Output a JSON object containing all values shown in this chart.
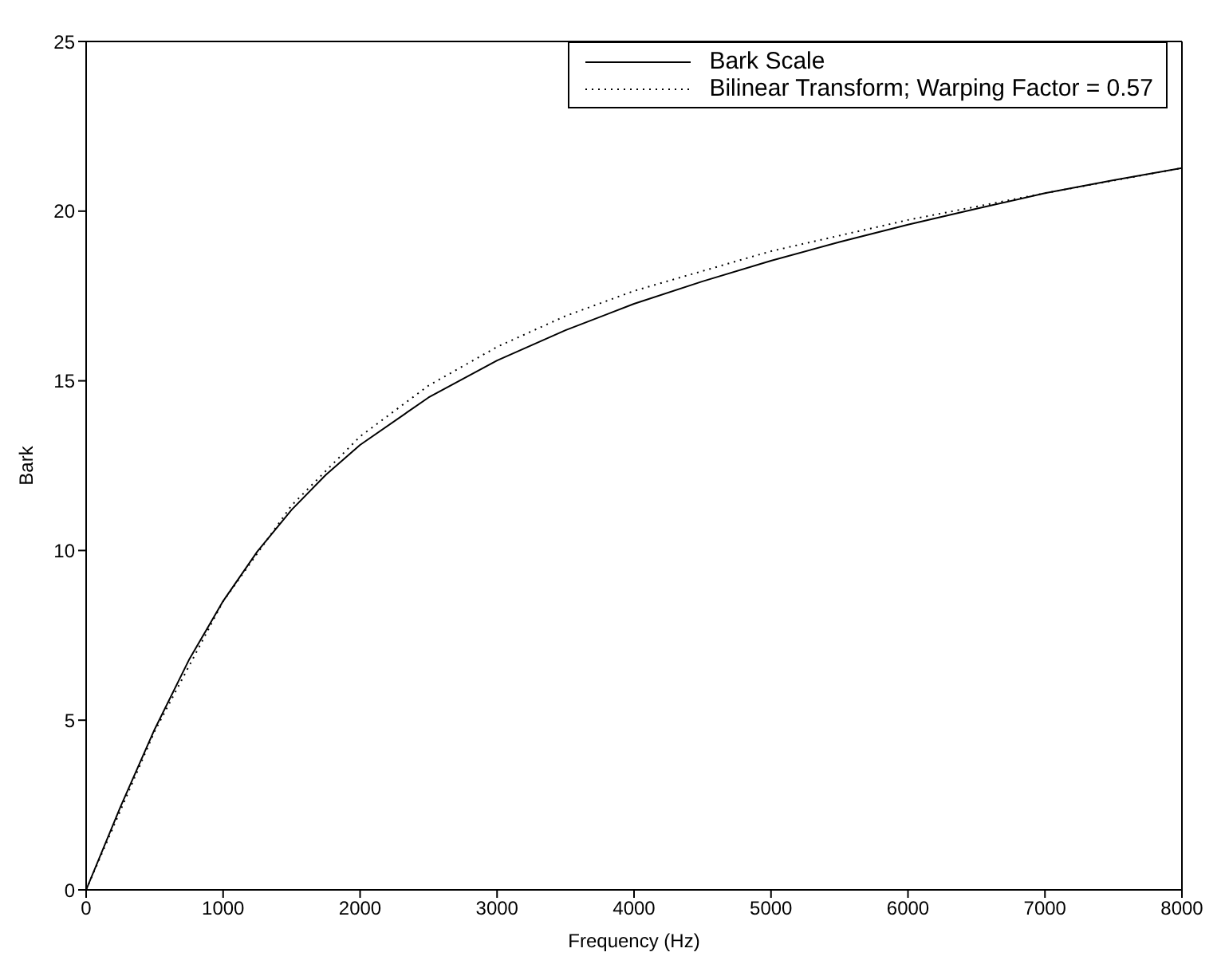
{
  "chart_data": {
    "type": "line",
    "xlabel": "Frequency (Hz)",
    "ylabel": "Bark",
    "xlim": [
      0,
      8000
    ],
    "ylim": [
      0,
      25
    ],
    "xticks": [
      0,
      1000,
      2000,
      3000,
      4000,
      5000,
      6000,
      7000,
      8000
    ],
    "yticks": [
      0,
      5,
      10,
      15,
      20,
      25
    ],
    "legend": "top right",
    "marker": "none",
    "series": [
      {
        "name": "Bark Scale",
        "color": "#000000",
        "line_style": "solid",
        "x": [
          0,
          250,
          500,
          750,
          1000,
          1250,
          1500,
          1750,
          2000,
          2500,
          3000,
          3500,
          4000,
          4500,
          5000,
          5500,
          6000,
          6500,
          7000,
          7500,
          8000
        ],
        "values": [
          0,
          2.44,
          4.73,
          6.77,
          8.51,
          9.97,
          11.2,
          12.23,
          13.11,
          14.51,
          15.6,
          16.49,
          17.27,
          17.93,
          18.54,
          19.09,
          19.6,
          20.07,
          20.53,
          20.91,
          21.27
        ]
      },
      {
        "name": "Bilinear Transform; Warping Factor = 0.57",
        "color": "#000000",
        "line_style": "dotted",
        "x": [
          0,
          500,
          1000,
          1500,
          2000,
          2500,
          3000,
          3500,
          4000,
          5000,
          6000,
          7000,
          8000
        ],
        "values": [
          0,
          4.67,
          8.5,
          11.33,
          13.36,
          14.86,
          16,
          16.91,
          17.65,
          18.82,
          19.74,
          20.53,
          21.27
        ]
      }
    ]
  }
}
